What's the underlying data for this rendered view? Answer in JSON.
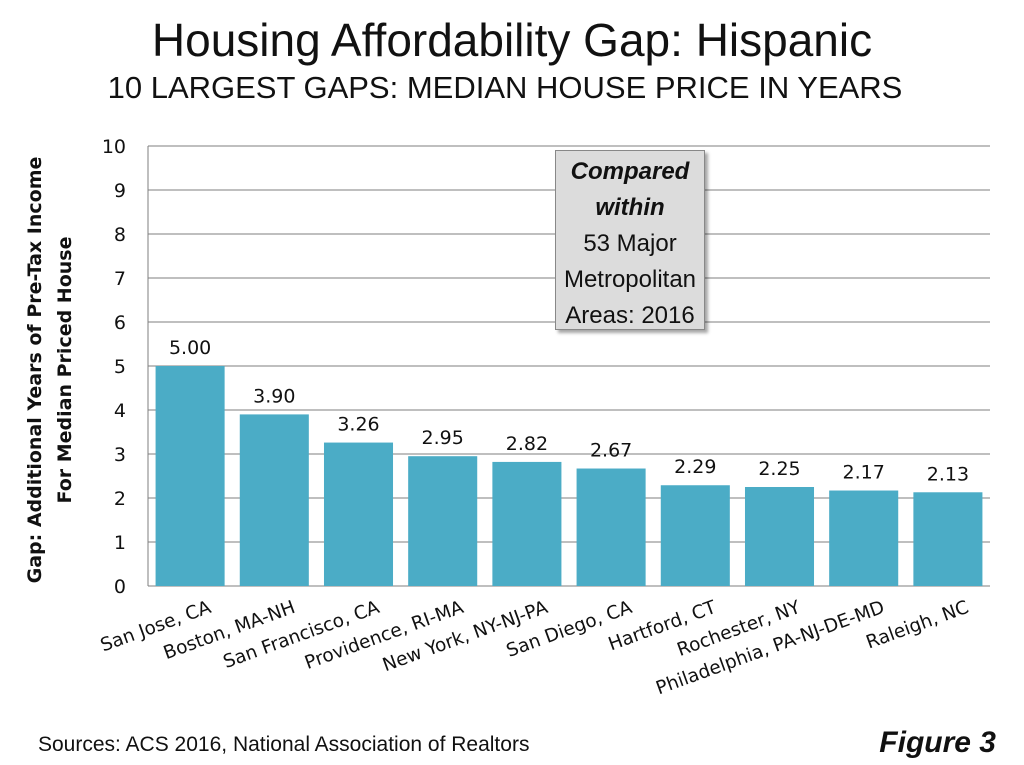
{
  "chart_data": {
    "type": "bar",
    "title": "Housing Affordability Gap: Hispanic",
    "subtitle": "10 LARGEST GAPS: MEDIAN HOUSE PRICE IN YEARS",
    "ylabel_line1": "Gap: Additional Years of Pre-Tax Income",
    "ylabel_line2": "For Median Priced House",
    "xlabel": "",
    "categories": [
      "San Jose, CA",
      "Boston, MA-NH",
      "San Francisco, CA",
      "Providence, RI-MA",
      "New York, NY-NJ-PA",
      "San Diego, CA",
      "Hartford, CT",
      "Rochester, NY",
      "Philadelphia, PA-NJ-DE-MD",
      "Raleigh, NC"
    ],
    "values": [
      5.0,
      3.9,
      3.26,
      2.95,
      2.82,
      2.67,
      2.29,
      2.25,
      2.17,
      2.13
    ],
    "value_labels": [
      "5.00",
      "3.90",
      "3.26",
      "2.95",
      "2.82",
      "2.67",
      "2.29",
      "2.25",
      "2.17",
      "2.13"
    ],
    "ylim": [
      0,
      10
    ],
    "yticks": [
      0,
      1,
      2,
      3,
      4,
      5,
      6,
      7,
      8,
      9,
      10
    ],
    "grid": true,
    "bar_color": "#4bacc6",
    "annotation": {
      "line1": "Compared",
      "line2": "within",
      "line3": "53 Major",
      "line4": "Metropolitan",
      "line5": "Areas: 2016"
    }
  },
  "footer": {
    "sources": "Sources: ACS 2016, National Association of Realtors",
    "figure": "Figure 3"
  }
}
